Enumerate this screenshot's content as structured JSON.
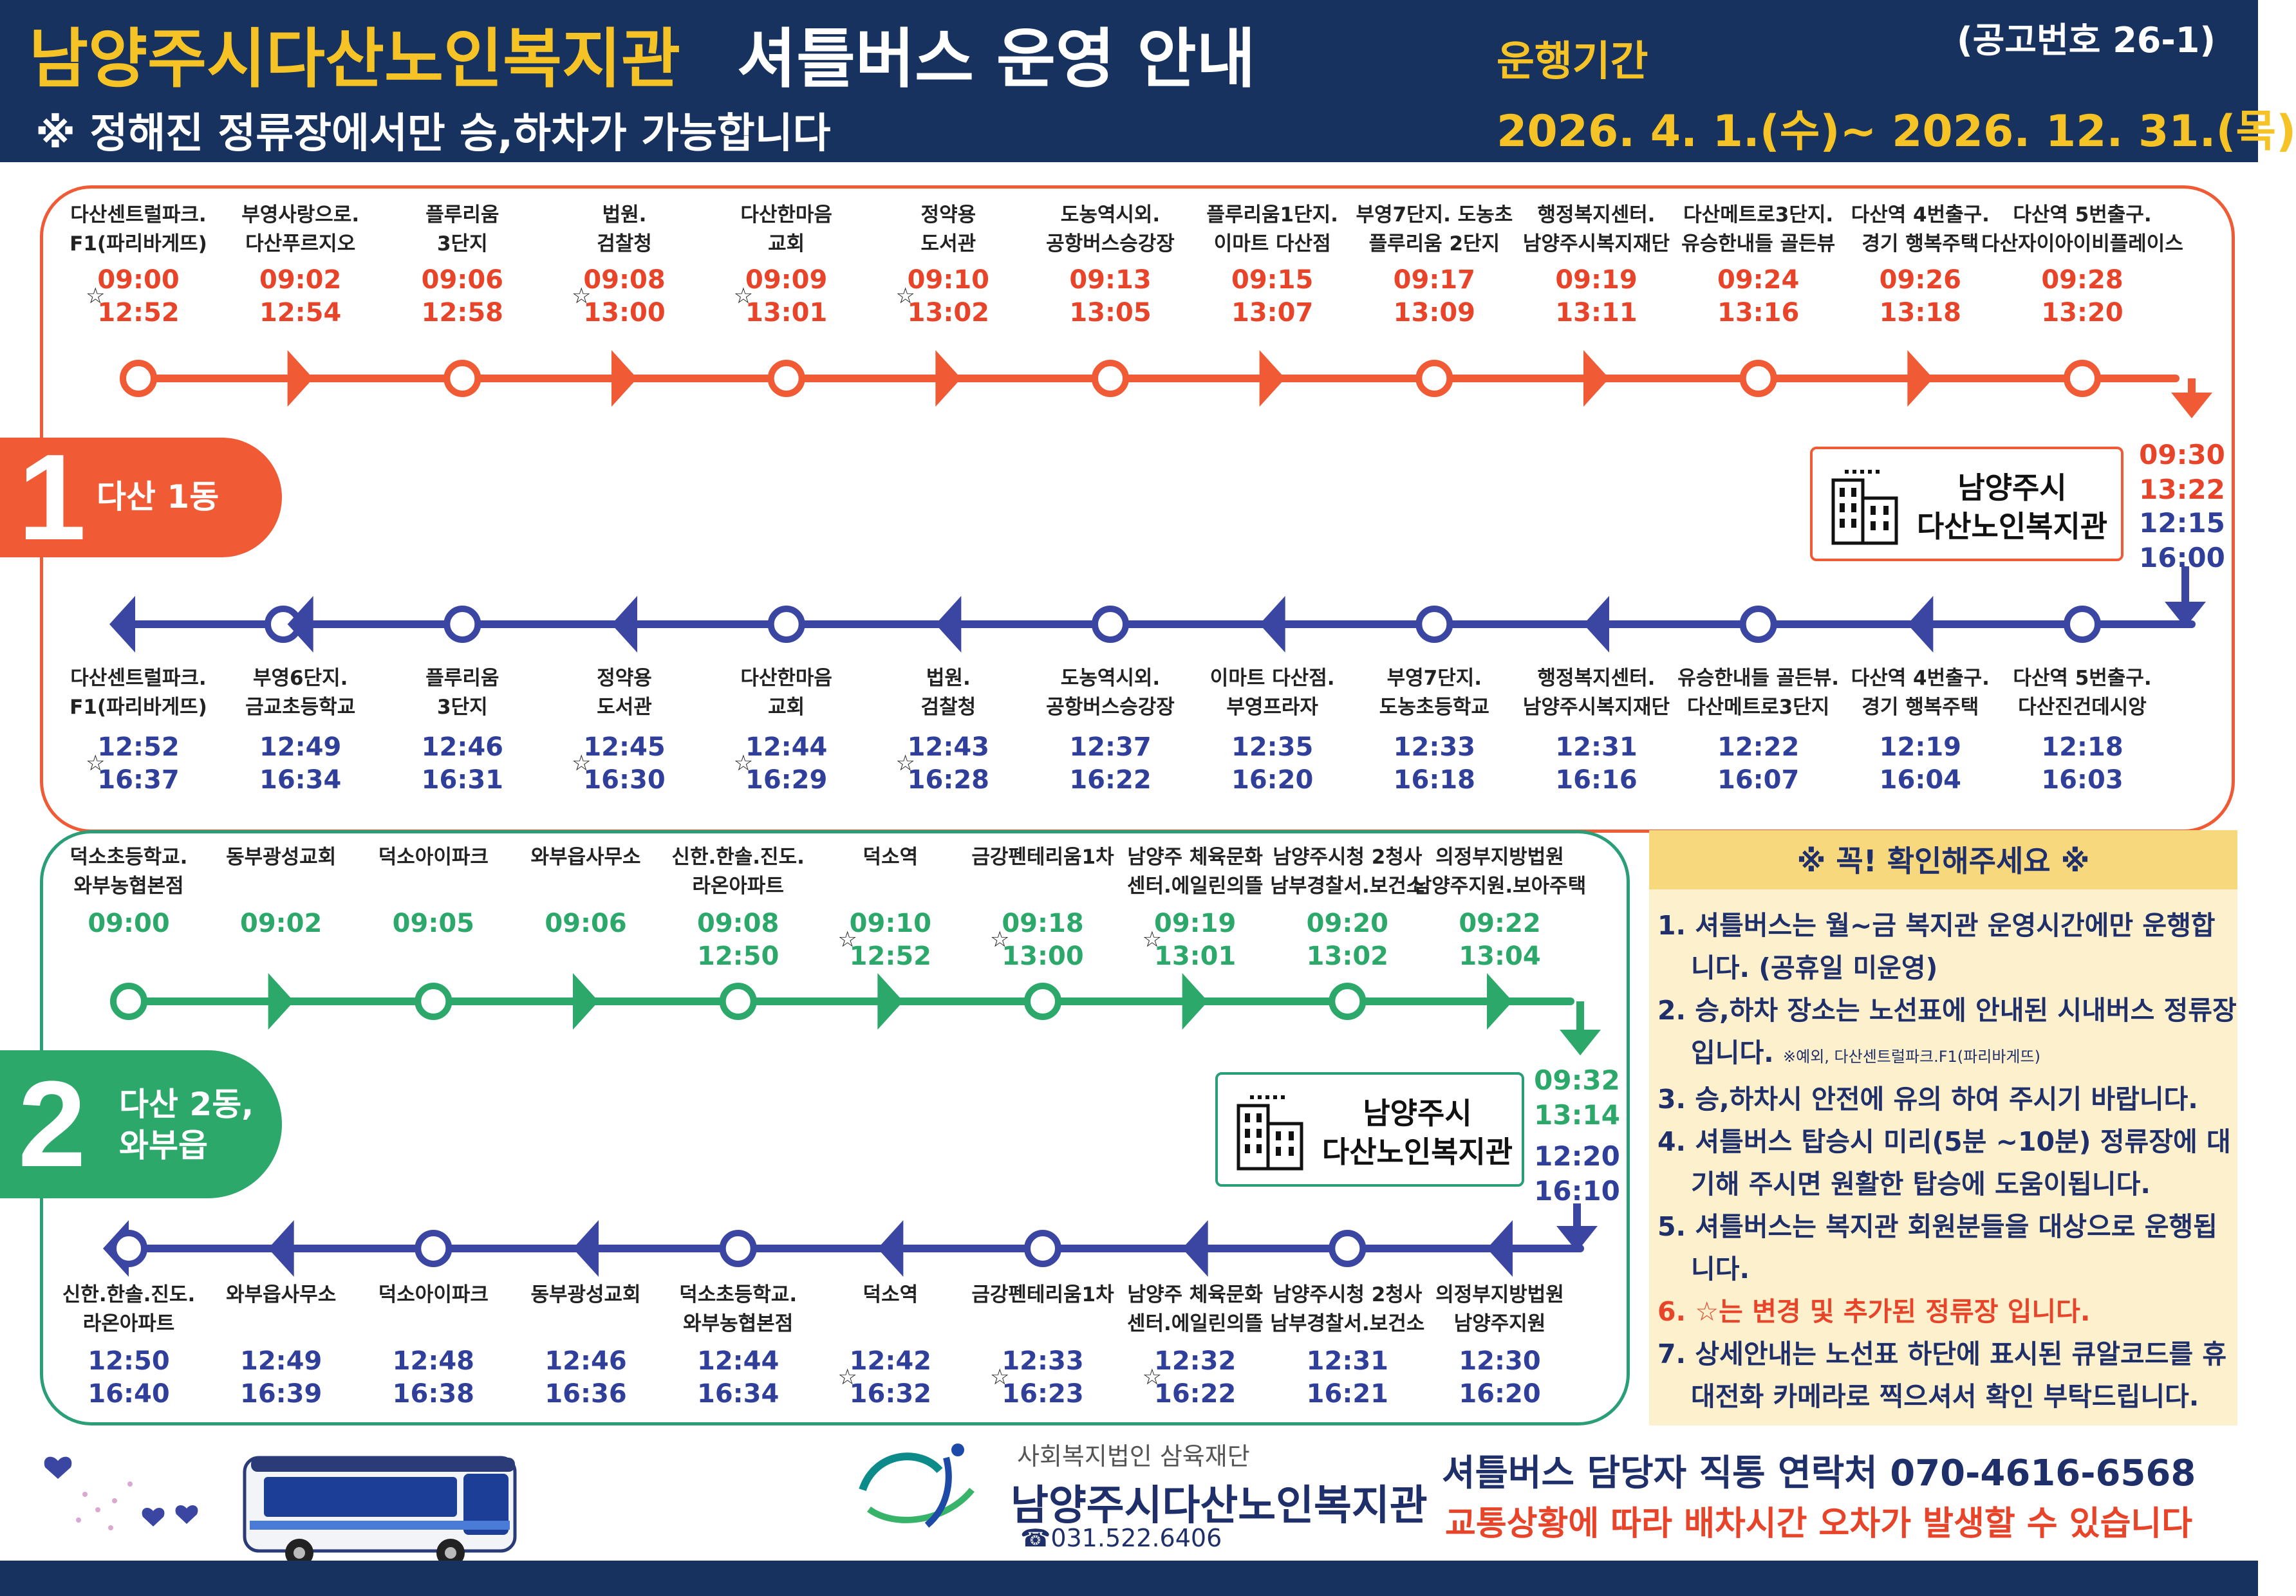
{
  "header": {
    "title_main": "남양주시다산노인복지관",
    "title_sub": "셔틀버스 운영 안내",
    "notice": "※ 정해진 정류장에서만 승,하차가 가능합니다",
    "period_label": "운행기간",
    "period_value": "2026. 4.  1.(수)~ 2026. 12. 31.(목)",
    "notice_no": "(공고번호 26-1)"
  },
  "colors": {
    "navy": "#17325f",
    "gold": "#f5c326",
    "orange": "#f05a35",
    "green": "#2da86b",
    "blue": "#3b46a3",
    "red_text": "#e8442a",
    "cream": "#fdf0cc"
  },
  "route1": {
    "badge_num": "1",
    "badge_label": "다산 1동",
    "hub_name": "남양주시\n다산노인복지관",
    "hub_arrive_times": [
      "09:30",
      "13:22"
    ],
    "hub_depart_times": [
      "12:15",
      "16:00"
    ],
    "outbound": [
      {
        "name": "다산센트럴파크.\nF1(파리바게뜨)",
        "times": [
          "09:00",
          "12:52"
        ],
        "star": true
      },
      {
        "name": "부영사랑으로.\n다산푸르지오",
        "times": [
          "09:02",
          "12:54"
        ],
        "star": false
      },
      {
        "name": "플루리움\n3단지",
        "times": [
          "09:06",
          "12:58"
        ],
        "star": false
      },
      {
        "name": "법원.\n검찰청",
        "times": [
          "09:08",
          "13:00"
        ],
        "star": true
      },
      {
        "name": "다산한마음\n교회",
        "times": [
          "09:09",
          "13:01"
        ],
        "star": true
      },
      {
        "name": "정약용\n도서관",
        "times": [
          "09:10",
          "13:02"
        ],
        "star": true
      },
      {
        "name": "도농역시외.\n공항버스승강장",
        "times": [
          "09:13",
          "13:05"
        ],
        "star": false
      },
      {
        "name": "플루리움1단지.\n이마트 다산점",
        "times": [
          "09:15",
          "13:07"
        ],
        "star": false
      },
      {
        "name": "부영7단지. 도농초\n플루리움 2단지",
        "times": [
          "09:17",
          "13:09"
        ],
        "star": false
      },
      {
        "name": "행정복지센터.\n남양주시복지재단",
        "times": [
          "09:19",
          "13:11"
        ],
        "star": false
      },
      {
        "name": "다산메트로3단지.\n유승한내들 골든뷰",
        "times": [
          "09:24",
          "13:16"
        ],
        "star": false
      },
      {
        "name": "다산역 4번출구.\n경기 행복주택",
        "times": [
          "09:26",
          "13:18"
        ],
        "star": false
      },
      {
        "name": "다산역 5번출구.\n다산자이아이비플레이스",
        "times": [
          "09:28",
          "13:20"
        ],
        "star": false
      }
    ],
    "inbound": [
      {
        "name": "다산센트럴파크.\nF1(파리바게뜨)",
        "times": [
          "12:52",
          "16:37"
        ],
        "star": true
      },
      {
        "name": "부영6단지.\n금교초등학교",
        "times": [
          "12:49",
          "16:34"
        ],
        "star": false
      },
      {
        "name": "플루리움\n3단지",
        "times": [
          "12:46",
          "16:31"
        ],
        "star": false
      },
      {
        "name": "정약용\n도서관",
        "times": [
          "12:45",
          "16:30"
        ],
        "star": true
      },
      {
        "name": "다산한마음\n교회",
        "times": [
          "12:44",
          "16:29"
        ],
        "star": true
      },
      {
        "name": "법원.\n검찰청",
        "times": [
          "12:43",
          "16:28"
        ],
        "star": true
      },
      {
        "name": "도농역시외.\n공항버스승강장",
        "times": [
          "12:37",
          "16:22"
        ],
        "star": false
      },
      {
        "name": "이마트 다산점.\n부영프라자",
        "times": [
          "12:35",
          "16:20"
        ],
        "star": false
      },
      {
        "name": "부영7단지.\n도농초등학교",
        "times": [
          "12:33",
          "16:18"
        ],
        "star": false
      },
      {
        "name": "행정복지센터.\n남양주시복지재단",
        "times": [
          "12:31",
          "16:16"
        ],
        "star": false
      },
      {
        "name": "유승한내들 골든뷰.\n다산메트로3단지",
        "times": [
          "12:22",
          "16:07"
        ],
        "star": false
      },
      {
        "name": "다산역 4번출구.\n경기 행복주택",
        "times": [
          "12:19",
          "16:04"
        ],
        "star": false
      },
      {
        "name": "다산역 5번출구.\n다산진건데시앙",
        "times": [
          "12:18",
          "16:03"
        ],
        "star": false
      }
    ]
  },
  "route2": {
    "badge_num": "2",
    "badge_label": "다산 2동,\n와부읍",
    "hub_name": "남양주시\n다산노인복지관",
    "hub_arrive_times": [
      "09:32",
      "13:14"
    ],
    "hub_depart_times": [
      "12:20",
      "16:10"
    ],
    "outbound": [
      {
        "name": "덕소초등학교.\n와부농협본점",
        "times": [
          "09:00"
        ],
        "star": false
      },
      {
        "name": "동부광성교회",
        "times": [
          "09:02"
        ],
        "star": false
      },
      {
        "name": "덕소아이파크",
        "times": [
          "09:05"
        ],
        "star": false
      },
      {
        "name": "와부읍사무소",
        "times": [
          "09:06"
        ],
        "star": false
      },
      {
        "name": "신한.한솔.진도.\n라온아파트",
        "times": [
          "09:08",
          "12:50"
        ],
        "star": false
      },
      {
        "name": "덕소역",
        "times": [
          "09:10",
          "12:52"
        ],
        "star": true
      },
      {
        "name": "금강펜테리움1차",
        "times": [
          "09:18",
          "13:00"
        ],
        "star": true
      },
      {
        "name": "남양주 체육문화\n센터.에일린의뜰",
        "times": [
          "09:19",
          "13:01"
        ],
        "star": true
      },
      {
        "name": "남양주시청 2청사\n남부경찰서.보건소",
        "times": [
          "09:20",
          "13:02"
        ],
        "star": false
      },
      {
        "name": "의정부지방법원\n남양주지원.보아주택",
        "times": [
          "09:22",
          "13:04"
        ],
        "star": false
      }
    ],
    "inbound": [
      {
        "name": "신한.한솔.진도.\n라온아파트",
        "times": [
          "12:50",
          "16:40"
        ],
        "star": false
      },
      {
        "name": "와부읍사무소",
        "times": [
          "12:49",
          "16:39"
        ],
        "star": false
      },
      {
        "name": "덕소아이파크",
        "times": [
          "12:48",
          "16:38"
        ],
        "star": false
      },
      {
        "name": "동부광성교회",
        "times": [
          "12:46",
          "16:36"
        ],
        "star": false
      },
      {
        "name": "덕소초등학교.\n와부농협본점",
        "times": [
          "12:44",
          "16:34"
        ],
        "star": false
      },
      {
        "name": "덕소역",
        "times": [
          "12:42",
          "16:32"
        ],
        "star": true
      },
      {
        "name": "금강펜테리움1차",
        "times": [
          "12:33",
          "16:23"
        ],
        "star": true
      },
      {
        "name": "남양주 체육문화\n센터.에일린의뜰",
        "times": [
          "12:32",
          "16:22"
        ],
        "star": true
      },
      {
        "name": "남양주시청 2청사\n남부경찰서.보건소",
        "times": [
          "12:31",
          "16:21"
        ],
        "star": false
      },
      {
        "name": "의정부지방법원\n남양주지원",
        "times": [
          "12:30",
          "16:20"
        ],
        "star": false
      }
    ]
  },
  "check": {
    "title": "※   꼭! 확인해주세요   ※",
    "items": [
      {
        "main": "1. 셔틀버스는 월~금 복지관 운영시간에만 운행합니다. (공휴일 미운영)",
        "note": ""
      },
      {
        "main": "2. 승,하차 장소는 노선표에 안내된 시내버스 정류장 입니다. ",
        "note": "※예외, 다산센트럴파크.F1(파리바게뜨)"
      },
      {
        "main": "3. 승,하차시 안전에 유의 하여 주시기 바랍니다.",
        "note": ""
      },
      {
        "main": "4. 셔틀버스 탑승시 미리(5분 ~10분) 정류장에 대기해 주시면 원활한 탑승에 도움이됩니다.",
        "note": ""
      },
      {
        "main": "5. 셔틀버스는 복지관 회원분들을 대상으로 운행됩니다.",
        "note": ""
      },
      {
        "main": "6. ☆는 변경 및 추가된 정류장 입니다.",
        "note": "",
        "warn": true
      },
      {
        "main": "7. 상세안내는 노선표 하단에 표시된 큐알코드를 휴대전화 카메라로 찍으셔서 확인 부탁드립니다.",
        "note": ""
      }
    ]
  },
  "footer": {
    "org_small": "사회복지법인 삼육재단",
    "org_name": "남양주시다산노인복지관",
    "org_tel": "☎031.522.6406",
    "contact": "셔틀버스 담당자 직통 연락처 070-4616-6568",
    "traffic": "교통상황에 따라 배차시간 오차가 발생할 수 있습니다"
  },
  "icons": [
    "building-icon",
    "bus-illustration",
    "heart-icon",
    "org-logo",
    "star-icon"
  ]
}
